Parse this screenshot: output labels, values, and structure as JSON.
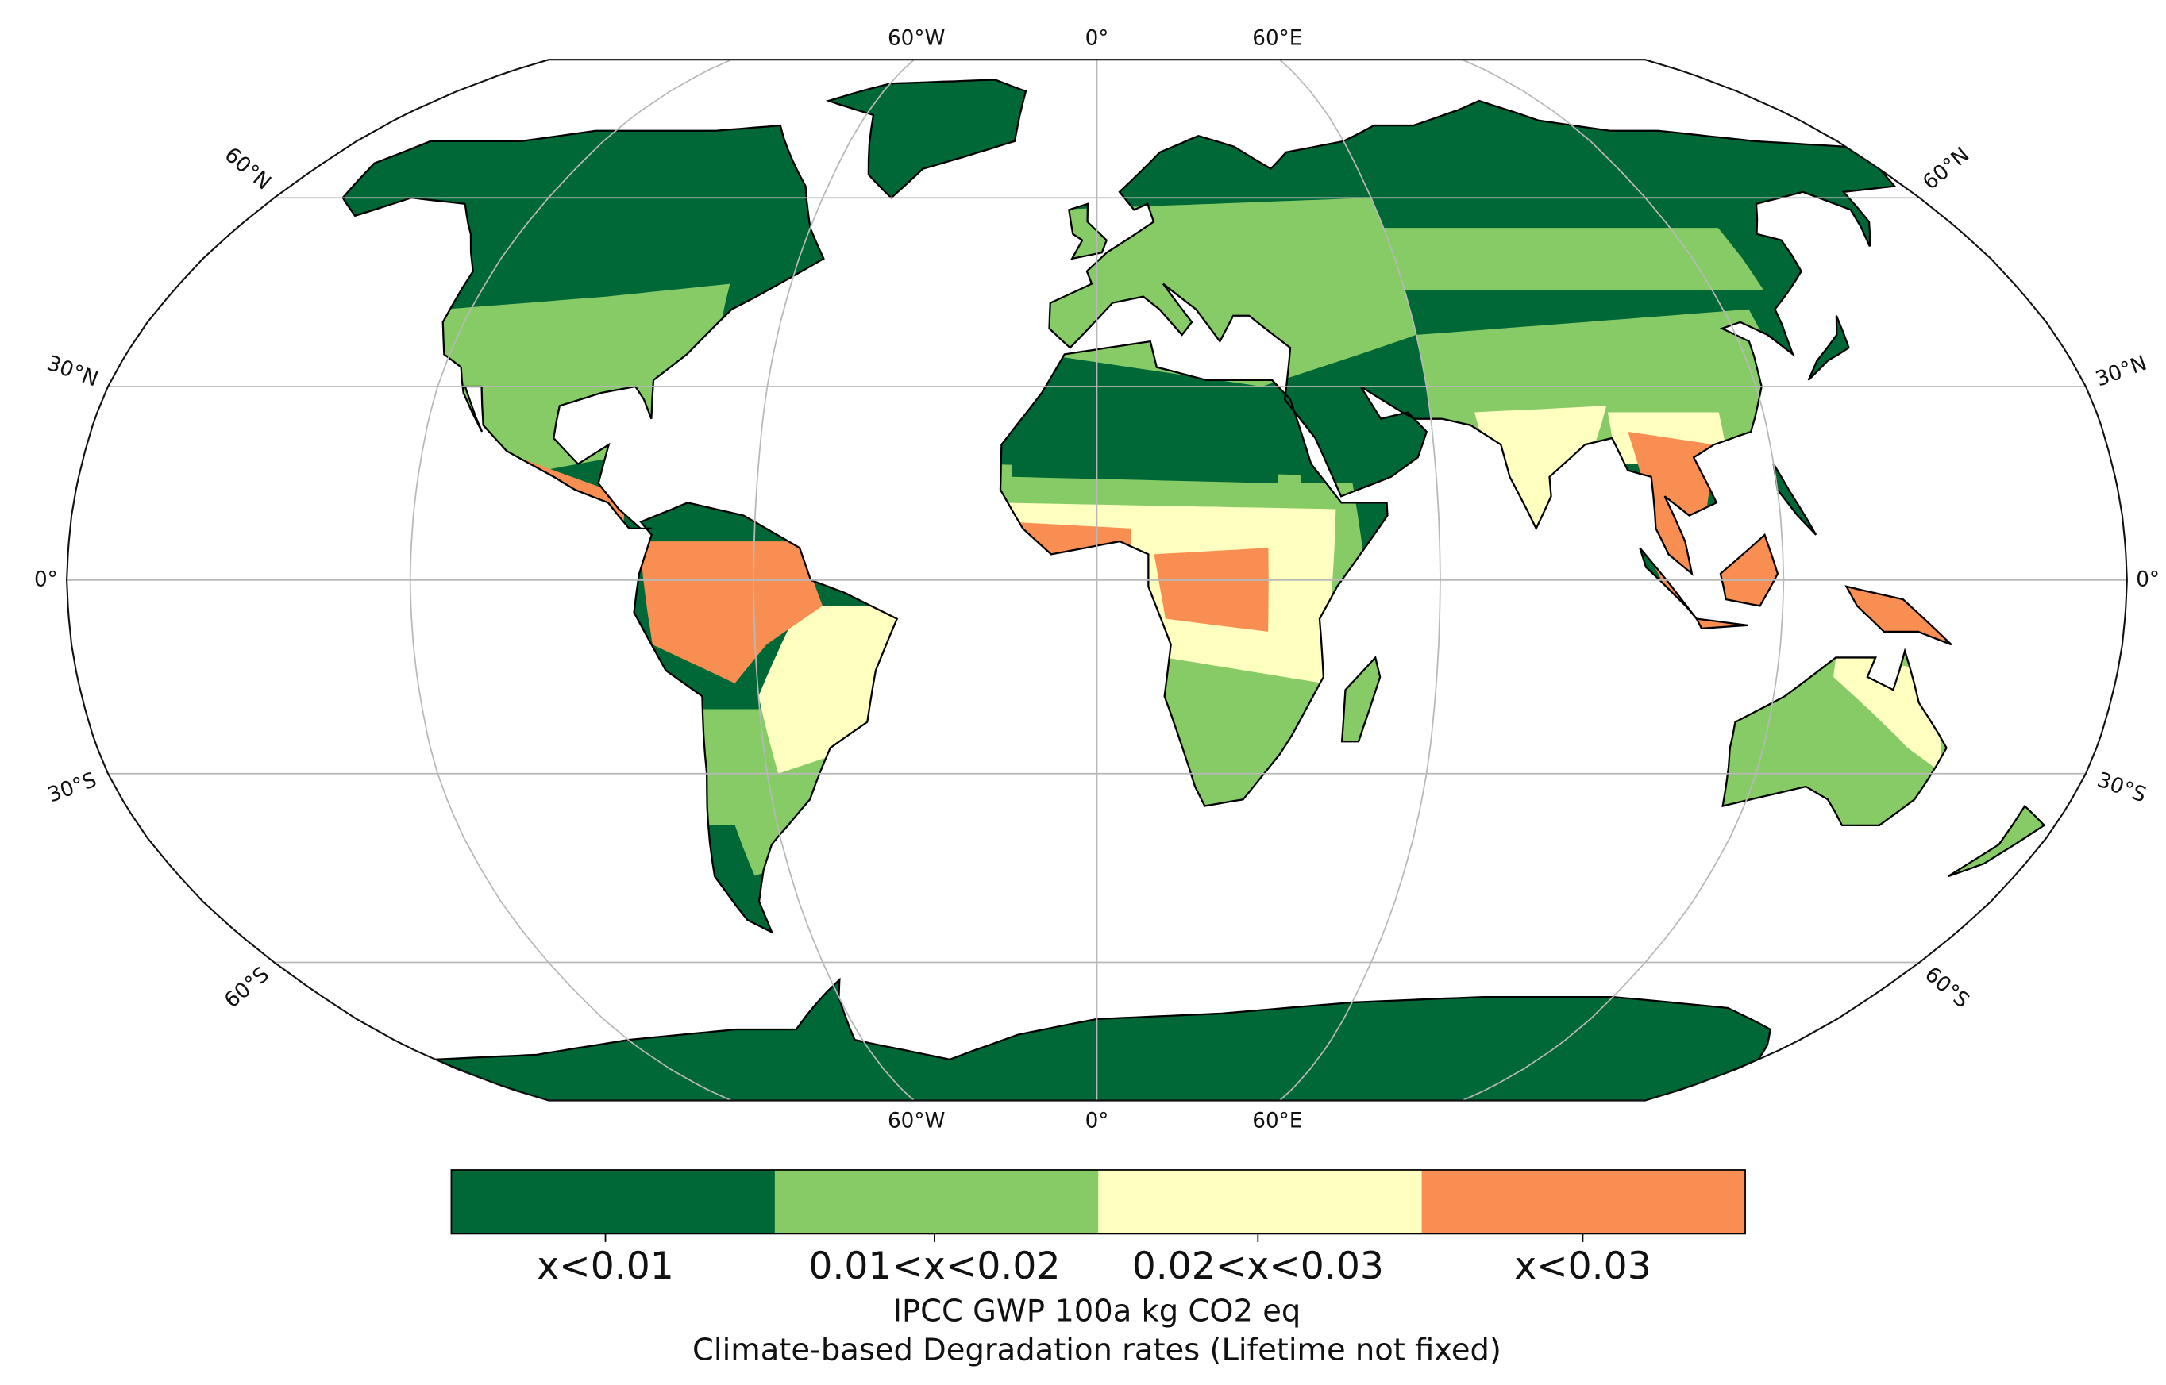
{
  "map": {
    "graticule": {
      "longitudes": [
        "60°W",
        "0°",
        "60°E"
      ],
      "latitudes": [
        "60°N",
        "30°N",
        "0°",
        "30°S",
        "60°S"
      ]
    }
  },
  "colorbar": {
    "categories": [
      "x<0.01",
      "0.01<x<0.02",
      "0.02<x<0.03",
      "x<0.03"
    ],
    "colors": [
      "#006837",
      "#86cb66",
      "#ffffbf",
      "#f98e52"
    ]
  },
  "colorbar_label": [
    "IPCC GWP 100a kg CO2 eq",
    "Climate-based Degradation rates (Lifetime not fixed)"
  ]
}
